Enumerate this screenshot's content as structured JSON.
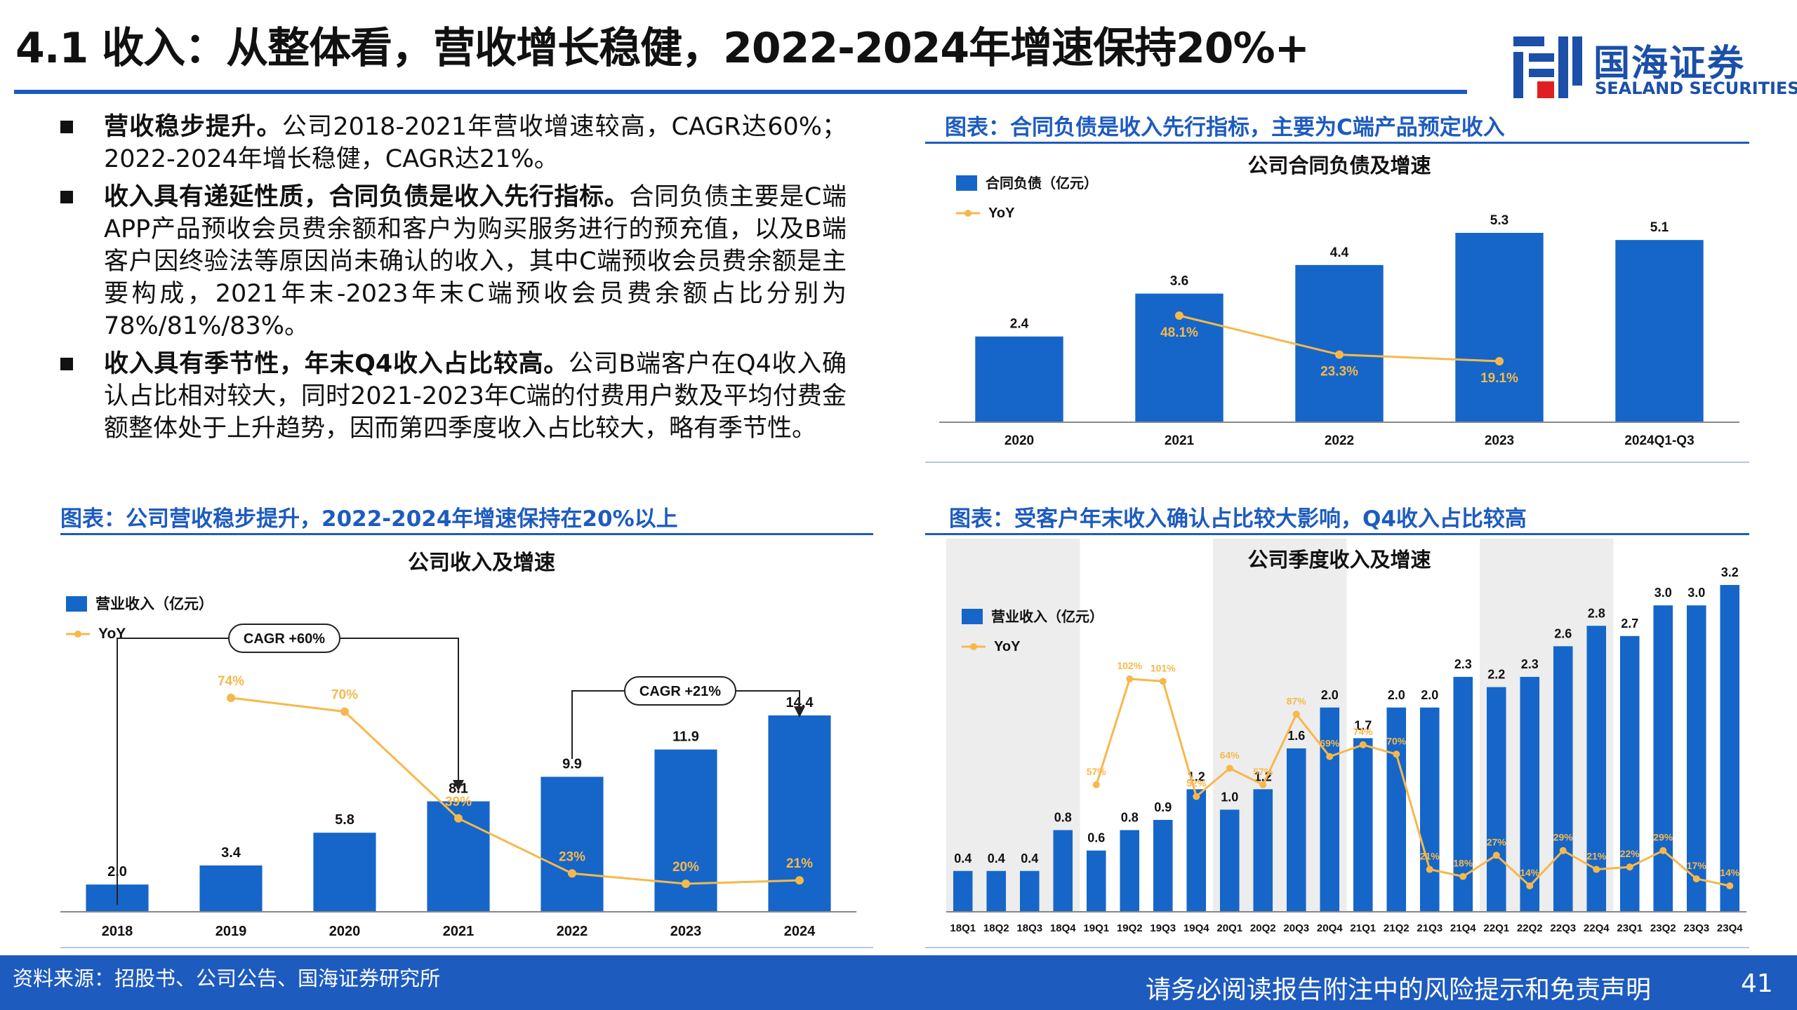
{
  "header": {
    "title": "4.1 收入：从整体看，营收增长稳健，2022-2024年增速保持20%+",
    "logo_name": "国海证券",
    "logo_sub": "SEALAND SECURITIES"
  },
  "bullets": [
    {
      "bold": "营收稳步提升。",
      "text": "公司2018-2021年营收增速较高，CAGR达60%；2022-2024年增长稳健，CAGR达21%。"
    },
    {
      "bold": "收入具有递延性质，合同负债是收入先行指标。",
      "text": "合同负债主要是C端APP产品预收会员费余额和客户为购买服务进行的预充值，以及B端客户因终验法等原因尚未确认的收入，其中C端预收会员费余额是主要构成，2021年末-2023年末C端预收会员费余额占比分别为78%/81%/83%。"
    },
    {
      "bold": "收入具有季节性，年末Q4收入占比较高。",
      "text": "公司B端客户在Q4收入确认占比相对较大，同时2021-2023年C端的付费用户数及平均付费金额整体处于上升趋势，因而第四季度收入占比较大，略有季节性。"
    }
  ],
  "captions": {
    "annual": "图表：公司营收稳步提升，2022-2024年增速保持在20%以上",
    "contract": "图表：合同负债是收入先行指标，主要为C端产品预定收入",
    "quarterly": "图表：受客户年末收入确认占比较大影响，Q4收入占比较高"
  },
  "footer": {
    "source": "资料来源：招股书、公司公告、国海证券研究所",
    "disclaimer": "请务必阅读报告附注中的风险提示和免责声明",
    "page": "41"
  },
  "colors": {
    "bar": "#1566c8",
    "line": "#f7b84b",
    "accent": "#1d5bbf",
    "shade": "#ededed"
  },
  "chart_data": [
    {
      "id": "annual",
      "type": "bar",
      "title": "公司收入及增速",
      "categories": [
        "2018",
        "2019",
        "2020",
        "2021",
        "2022",
        "2023",
        "2024"
      ],
      "series": [
        {
          "name": "营业收入（亿元）",
          "kind": "bar",
          "values": [
            2.0,
            3.4,
            5.8,
            8.1,
            9.9,
            11.9,
            14.4
          ]
        },
        {
          "name": "YoY",
          "kind": "line",
          "values": [
            null,
            74,
            70,
            39,
            23,
            20,
            21
          ],
          "labels": [
            "",
            "74%",
            "70%",
            "39%",
            "23%",
            "20%",
            "21%"
          ]
        }
      ],
      "annotations": [
        "CAGR +60%",
        "CAGR +21%"
      ],
      "legend": "top-left",
      "grid": false
    },
    {
      "id": "contract",
      "type": "bar",
      "title": "公司合同负债及增速",
      "categories": [
        "2020",
        "2021",
        "2022",
        "2023",
        "2024Q1-Q3"
      ],
      "series": [
        {
          "name": "合同负债（亿元）",
          "kind": "bar",
          "values": [
            2.4,
            3.6,
            4.4,
            5.3,
            5.1
          ]
        },
        {
          "name": "YoY",
          "kind": "line",
          "values": [
            null,
            48.1,
            23.3,
            19.1,
            null
          ],
          "labels": [
            "",
            "48.1%",
            "23.3%",
            "19.1%",
            ""
          ]
        }
      ],
      "legend": "top-left",
      "grid": false
    },
    {
      "id": "quarterly",
      "type": "bar",
      "title": "公司季度收入及增速",
      "categories": [
        "18Q1",
        "18Q2",
        "18Q3",
        "18Q4",
        "19Q1",
        "19Q2",
        "19Q3",
        "19Q4",
        "20Q1",
        "20Q2",
        "20Q3",
        "20Q4",
        "21Q1",
        "21Q2",
        "21Q3",
        "21Q4",
        "22Q1",
        "22Q2",
        "22Q3",
        "22Q4",
        "23Q1",
        "23Q2",
        "23Q3",
        "23Q4"
      ],
      "series": [
        {
          "name": "营业收入（亿元）",
          "kind": "bar",
          "values": [
            0.4,
            0.4,
            0.4,
            0.8,
            0.6,
            0.8,
            0.9,
            1.2,
            1.0,
            1.2,
            1.6,
            2.0,
            1.7,
            2.0,
            2.0,
            2.3,
            2.2,
            2.3,
            2.6,
            2.8,
            2.7,
            3.0,
            3.0,
            3.2
          ],
          "labels": [
            "0.4",
            "0.4",
            "0.4",
            "0.8",
            "0.6",
            "0.8",
            "0.9",
            "1.2",
            "1.0",
            "1.2",
            "1.6",
            "2.0",
            "1.7",
            "2.0",
            "2.0",
            "2.3",
            "2.2",
            "2.3",
            "2.6",
            "2.8",
            "2.7",
            "3.0",
            "3.0",
            "3.2"
          ]
        },
        {
          "name": "YoY",
          "kind": "line",
          "values": [
            null,
            null,
            null,
            null,
            57,
            102,
            101,
            52,
            64,
            57,
            87,
            69,
            74,
            70,
            21,
            18,
            27,
            14,
            29,
            21,
            22,
            29,
            17,
            14
          ],
          "labels": [
            "",
            "",
            "",
            "",
            "57%",
            "102%",
            "101%",
            "52%",
            "64%",
            "57%",
            "87%",
            "69%",
            "74%",
            "70%",
            "21%",
            "18%",
            "27%",
            "14%",
            "29%",
            "21%",
            "22%",
            "29%",
            "17%",
            "14%"
          ]
        }
      ],
      "legend": "top-left",
      "grid": false,
      "shaded_groups": [
        "18",
        "20",
        "22"
      ]
    }
  ]
}
